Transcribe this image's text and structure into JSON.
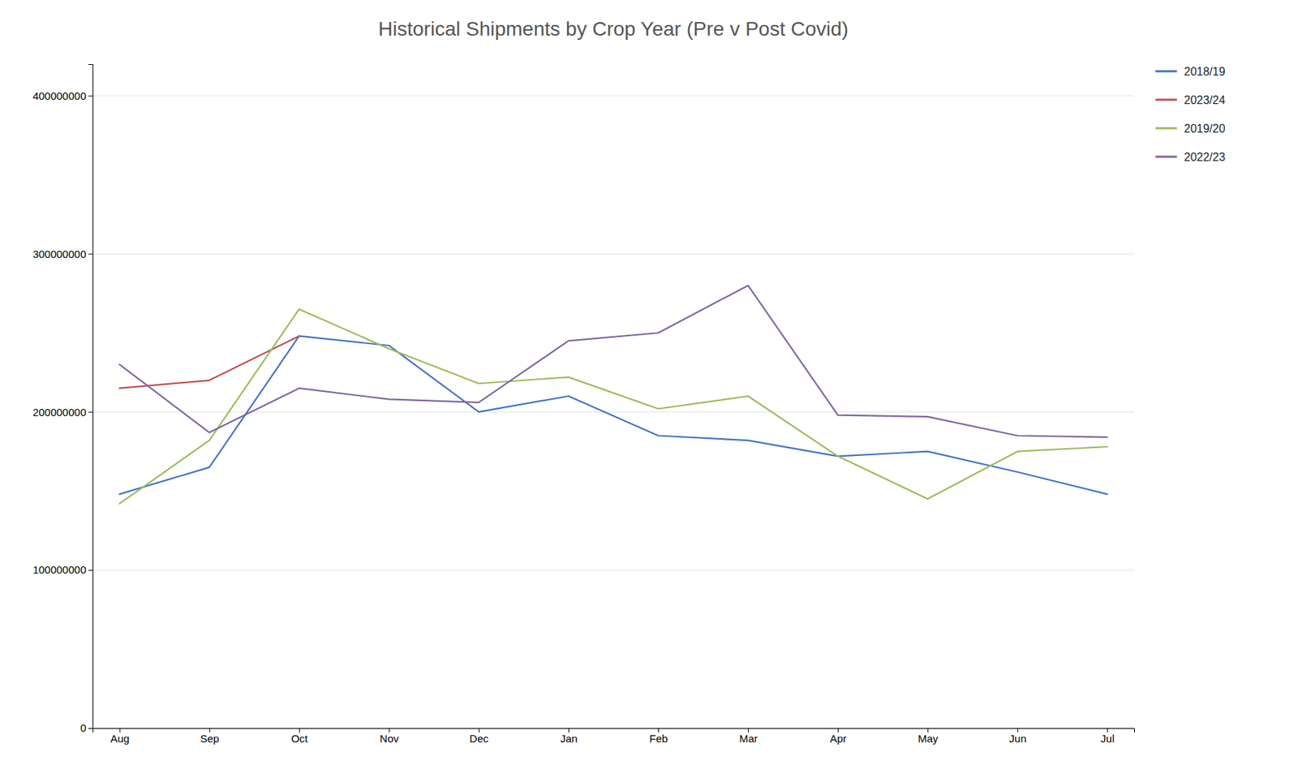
{
  "chart_data": {
    "type": "line",
    "title": "Historical Shipments by Crop Year (Pre v Post Covid)",
    "categories": [
      "Aug",
      "Sep",
      "Oct",
      "Nov",
      "Dec",
      "Jan",
      "Feb",
      "Mar",
      "Apr",
      "May",
      "Jun",
      "Jul"
    ],
    "series": [
      {
        "name": "2018/19",
        "color": "#4472C4",
        "values": [
          148000000,
          165000000,
          248000000,
          242000000,
          200000000,
          210000000,
          185000000,
          182000000,
          172000000,
          175000000,
          162000000,
          148000000
        ]
      },
      {
        "name": "2023/24",
        "color": "#C0504D",
        "values": [
          215000000,
          220000000,
          248000000,
          null,
          null,
          null,
          null,
          null,
          null,
          null,
          null,
          null
        ]
      },
      {
        "name": "2019/20",
        "color": "#9BBB59",
        "values": [
          142000000,
          182000000,
          265000000,
          240000000,
          218000000,
          222000000,
          202000000,
          210000000,
          172000000,
          145000000,
          175000000,
          178000000
        ]
      },
      {
        "name": "2022/23",
        "color": "#8064A2",
        "values": [
          230000000,
          187000000,
          215000000,
          208000000,
          206000000,
          245000000,
          250000000,
          280000000,
          198000000,
          197000000,
          185000000,
          184000000
        ]
      }
    ],
    "ylim": [
      0,
      420000000
    ],
    "yticks": [
      0,
      100000000,
      200000000,
      300000000,
      400000000
    ],
    "grid": true,
    "legend": "right"
  }
}
